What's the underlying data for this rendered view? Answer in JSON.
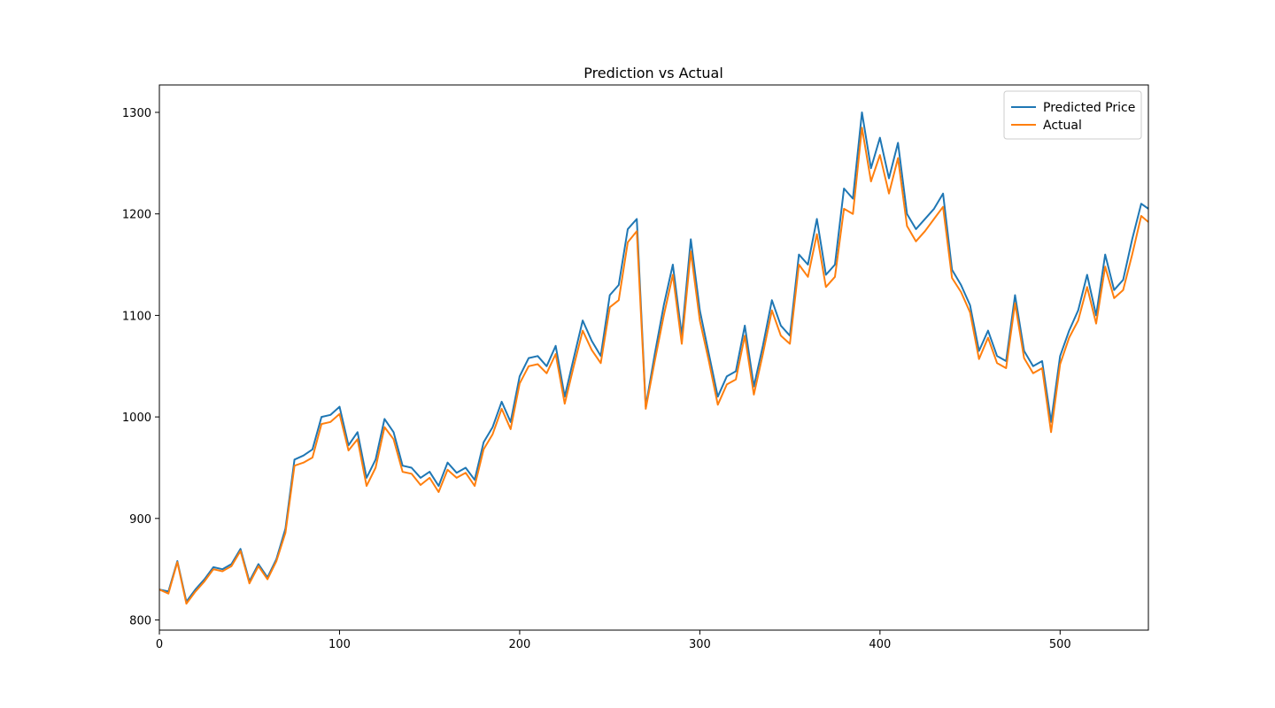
{
  "chart_data": {
    "type": "line",
    "title": "Prediction vs Actual",
    "xlabel": "",
    "ylabel": "",
    "xlim": [
      0,
      549
    ],
    "ylim": [
      790,
      1327
    ],
    "xticks": [
      0,
      100,
      200,
      300,
      400,
      500
    ],
    "yticks": [
      800,
      900,
      1000,
      1100,
      1200,
      1300
    ],
    "grid": false,
    "legend": {
      "placement": "top-right"
    },
    "x": [
      0,
      5,
      10,
      15,
      20,
      25,
      30,
      35,
      40,
      45,
      50,
      55,
      60,
      65,
      70,
      75,
      80,
      85,
      90,
      95,
      100,
      105,
      110,
      115,
      120,
      125,
      130,
      135,
      140,
      145,
      150,
      155,
      160,
      165,
      170,
      175,
      180,
      185,
      190,
      195,
      200,
      205,
      210,
      215,
      220,
      225,
      230,
      235,
      240,
      245,
      250,
      255,
      260,
      265,
      270,
      275,
      280,
      285,
      290,
      295,
      300,
      305,
      310,
      315,
      320,
      325,
      330,
      335,
      340,
      345,
      350,
      355,
      360,
      365,
      370,
      375,
      380,
      385,
      390,
      395,
      400,
      405,
      410,
      415,
      420,
      425,
      430,
      435,
      440,
      445,
      450,
      455,
      460,
      465,
      470,
      475,
      480,
      485,
      490,
      495,
      500,
      505,
      510,
      515,
      520,
      525,
      530,
      535,
      540,
      545,
      549
    ],
    "series": [
      {
        "name": "Predicted Price",
        "color": "#1f77b4",
        "values": [
          830,
          828,
          858,
          818,
          830,
          840,
          852,
          850,
          855,
          870,
          838,
          855,
          842,
          860,
          890,
          958,
          962,
          968,
          1000,
          1002,
          1010,
          972,
          985,
          940,
          958,
          998,
          985,
          952,
          950,
          940,
          946,
          932,
          955,
          945,
          950,
          938,
          975,
          990,
          1015,
          995,
          1040,
          1058,
          1060,
          1050,
          1070,
          1020,
          1058,
          1095,
          1075,
          1060,
          1120,
          1130,
          1185,
          1195,
          1010,
          1062,
          1110,
          1150,
          1080,
          1175,
          1105,
          1062,
          1020,
          1040,
          1045,
          1090,
          1030,
          1070,
          1115,
          1090,
          1080,
          1160,
          1150,
          1195,
          1140,
          1150,
          1225,
          1215,
          1300,
          1245,
          1275,
          1235,
          1270,
          1200,
          1185,
          1195,
          1205,
          1220,
          1145,
          1130,
          1110,
          1065,
          1085,
          1060,
          1055,
          1120,
          1065,
          1050,
          1055,
          995,
          1060,
          1085,
          1105,
          1140,
          1100,
          1160,
          1125,
          1135,
          1175,
          1210,
          1205
        ]
      },
      {
        "name": "Actual",
        "color": "#ff7f0e",
        "values": [
          830,
          826,
          857,
          816,
          828,
          838,
          850,
          848,
          853,
          868,
          836,
          853,
          840,
          858,
          886,
          952,
          955,
          960,
          993,
          995,
          1003,
          967,
          978,
          932,
          950,
          990,
          978,
          946,
          944,
          933,
          940,
          926,
          948,
          940,
          945,
          932,
          968,
          983,
          1008,
          988,
          1033,
          1050,
          1052,
          1043,
          1062,
          1013,
          1050,
          1085,
          1066,
          1053,
          1108,
          1115,
          1172,
          1183,
          1008,
          1055,
          1100,
          1140,
          1072,
          1163,
          1095,
          1055,
          1012,
          1032,
          1037,
          1080,
          1022,
          1062,
          1105,
          1080,
          1072,
          1150,
          1138,
          1180,
          1128,
          1138,
          1205,
          1200,
          1285,
          1232,
          1258,
          1220,
          1255,
          1188,
          1173,
          1183,
          1195,
          1207,
          1137,
          1123,
          1103,
          1057,
          1078,
          1053,
          1048,
          1112,
          1058,
          1043,
          1048,
          985,
          1052,
          1078,
          1095,
          1128,
          1092,
          1148,
          1117,
          1125,
          1160,
          1198,
          1192
        ]
      }
    ]
  }
}
